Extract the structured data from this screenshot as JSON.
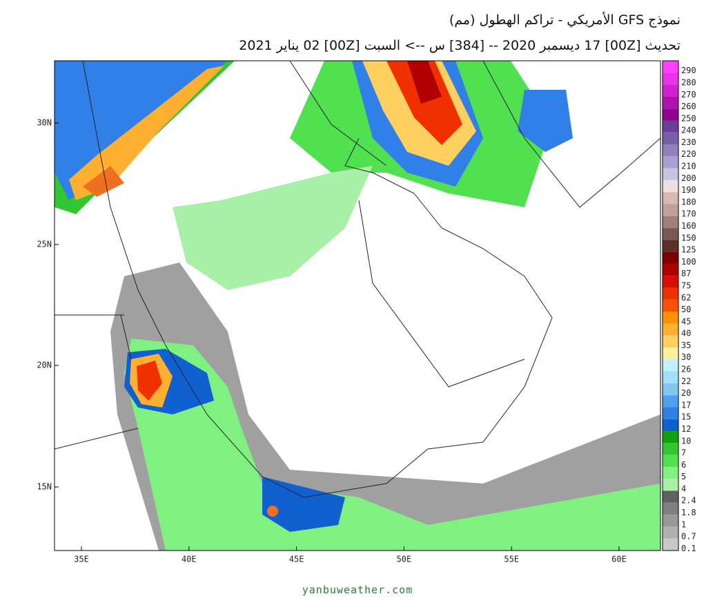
{
  "header": {
    "title": "نموذج GFS الأمريكي  - تراكم الهطول (مم)",
    "subtitle": "تحديث [00Z] 17 ديسمبر 2020 -- [384] س --> السبت [00Z] 02 يناير 2021"
  },
  "map": {
    "lat_labels": [
      "30N",
      "25N",
      "20N",
      "15N"
    ],
    "lon_labels": [
      "35E",
      "40E",
      "45E",
      "50E",
      "55E",
      "60E"
    ]
  },
  "colorbar": [
    {
      "label": "290",
      "color": "#ff40ff"
    },
    {
      "label": "280",
      "color": "#ee30ee"
    },
    {
      "label": "270",
      "color": "#d020d0"
    },
    {
      "label": "260",
      "color": "#b010b0"
    },
    {
      "label": "250",
      "color": "#900090"
    },
    {
      "label": "240",
      "color": "#6a3d9a"
    },
    {
      "label": "230",
      "color": "#7b5ea7"
    },
    {
      "label": "220",
      "color": "#9080c0"
    },
    {
      "label": "210",
      "color": "#a8a0d0"
    },
    {
      "label": "200",
      "color": "#c8c4e0"
    },
    {
      "label": "190",
      "color": "#efe0e0"
    },
    {
      "label": "180",
      "color": "#d8b8b0"
    },
    {
      "label": "170",
      "color": "#c0a098"
    },
    {
      "label": "160",
      "color": "#a08078"
    },
    {
      "label": "150",
      "color": "#7a5a50"
    },
    {
      "label": "125",
      "color": "#5a3028"
    },
    {
      "label": "100",
      "color": "#800000"
    },
    {
      "label": "87",
      "color": "#b00000"
    },
    {
      "label": "75",
      "color": "#d81000"
    },
    {
      "label": "62",
      "color": "#f03000"
    },
    {
      "label": "50",
      "color": "#ff5000"
    },
    {
      "label": "45",
      "color": "#ff9000"
    },
    {
      "label": "40",
      "color": "#ffb030"
    },
    {
      "label": "35",
      "color": "#ffd060"
    },
    {
      "label": "30",
      "color": "#fff0a0"
    },
    {
      "label": "26",
      "color": "#c0f0f8"
    },
    {
      "label": "22",
      "color": "#a0e0f8"
    },
    {
      "label": "20",
      "color": "#80c8f0"
    },
    {
      "label": "17",
      "color": "#50a0f0"
    },
    {
      "label": "15",
      "color": "#3080e8"
    },
    {
      "label": "12",
      "color": "#1060d0"
    },
    {
      "label": "10",
      "color": "#10a010"
    },
    {
      "label": "7",
      "color": "#30c830"
    },
    {
      "label": "6",
      "color": "#50e050"
    },
    {
      "label": "5",
      "color": "#80f080"
    },
    {
      "label": "4",
      "color": "#a8f0a8"
    },
    {
      "label": "2.4",
      "color": "#606060"
    },
    {
      "label": "1.8",
      "color": "#808080"
    },
    {
      "label": "1",
      "color": "#989898"
    },
    {
      "label": "0.7",
      "color": "#b0b0b0"
    },
    {
      "label": "0.1",
      "color": "#c8c8c8"
    }
  ],
  "footer": "yanbuweather.com"
}
